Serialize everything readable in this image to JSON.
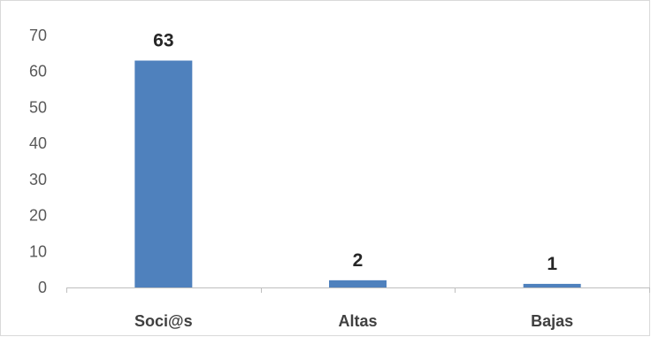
{
  "chart_data": {
    "type": "bar",
    "title": "",
    "xlabel": "",
    "ylabel": "",
    "categories": [
      "Soci@s",
      "Altas",
      "Bajas"
    ],
    "values": [
      63,
      2,
      1
    ],
    "data_labels": [
      "63",
      "2",
      "1"
    ],
    "ylim": [
      0,
      70
    ],
    "yticks": [
      "0",
      "10",
      "20",
      "30",
      "40",
      "50",
      "60",
      "70"
    ],
    "grid": false,
    "legend": "none",
    "bar_color": "#4f81bd",
    "axis_color": "#bfbfbf"
  }
}
